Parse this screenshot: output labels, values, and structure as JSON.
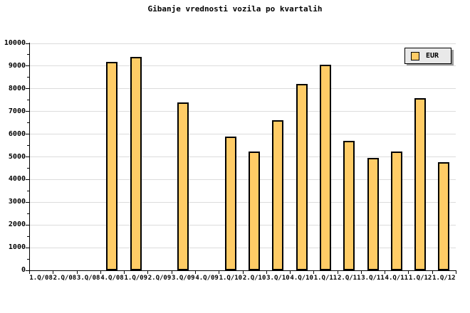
{
  "title": "Gibanje vrednosti vozila po kvartalih",
  "legend": {
    "label": "EUR"
  },
  "colors": {
    "background": "#FFFFFF",
    "bar_fill": "#FFCC66",
    "bar_border": "#000000",
    "grid": "#DCDCDC",
    "axis": "#000000",
    "text": "#000000",
    "legend_bg": "#E9E9E9",
    "legend_border": "#000000",
    "legend_shadow": "#999999"
  },
  "y_axis": {
    "tick_labels": [
      "0",
      "1000",
      "2000",
      "3000",
      "4000",
      "5000",
      "6000",
      "7000",
      "8000",
      "9000",
      "10000"
    ]
  },
  "chart_data": {
    "type": "bar",
    "title": "Gibanje vrednosti vozila po kvartalih",
    "categories": [
      "1.Q/08",
      "2.Q/08",
      "3.Q/08",
      "4.Q/08",
      "1.Q/09",
      "2.Q/09",
      "3.Q/09",
      "4.Q/09",
      "1.Q/10",
      "2.Q/10",
      "3.Q/10",
      "4.Q/10",
      "1.Q/11",
      "2.Q/11",
      "3.Q/11",
      "4.Q/11",
      "1.Q/12",
      "1.Q/12"
    ],
    "series": [
      {
        "name": "EUR",
        "values": [
          null,
          null,
          null,
          9200,
          9400,
          null,
          7400,
          null,
          5900,
          5250,
          6600,
          8200,
          9050,
          5700,
          4950,
          5250,
          7600,
          4750
        ]
      }
    ],
    "xlabel": "",
    "ylabel": "",
    "ylim": [
      0,
      10000
    ],
    "ytick_step": 1000,
    "ytick_minor_step": 500,
    "grid": "horizontal",
    "legend_position": "top-right"
  }
}
